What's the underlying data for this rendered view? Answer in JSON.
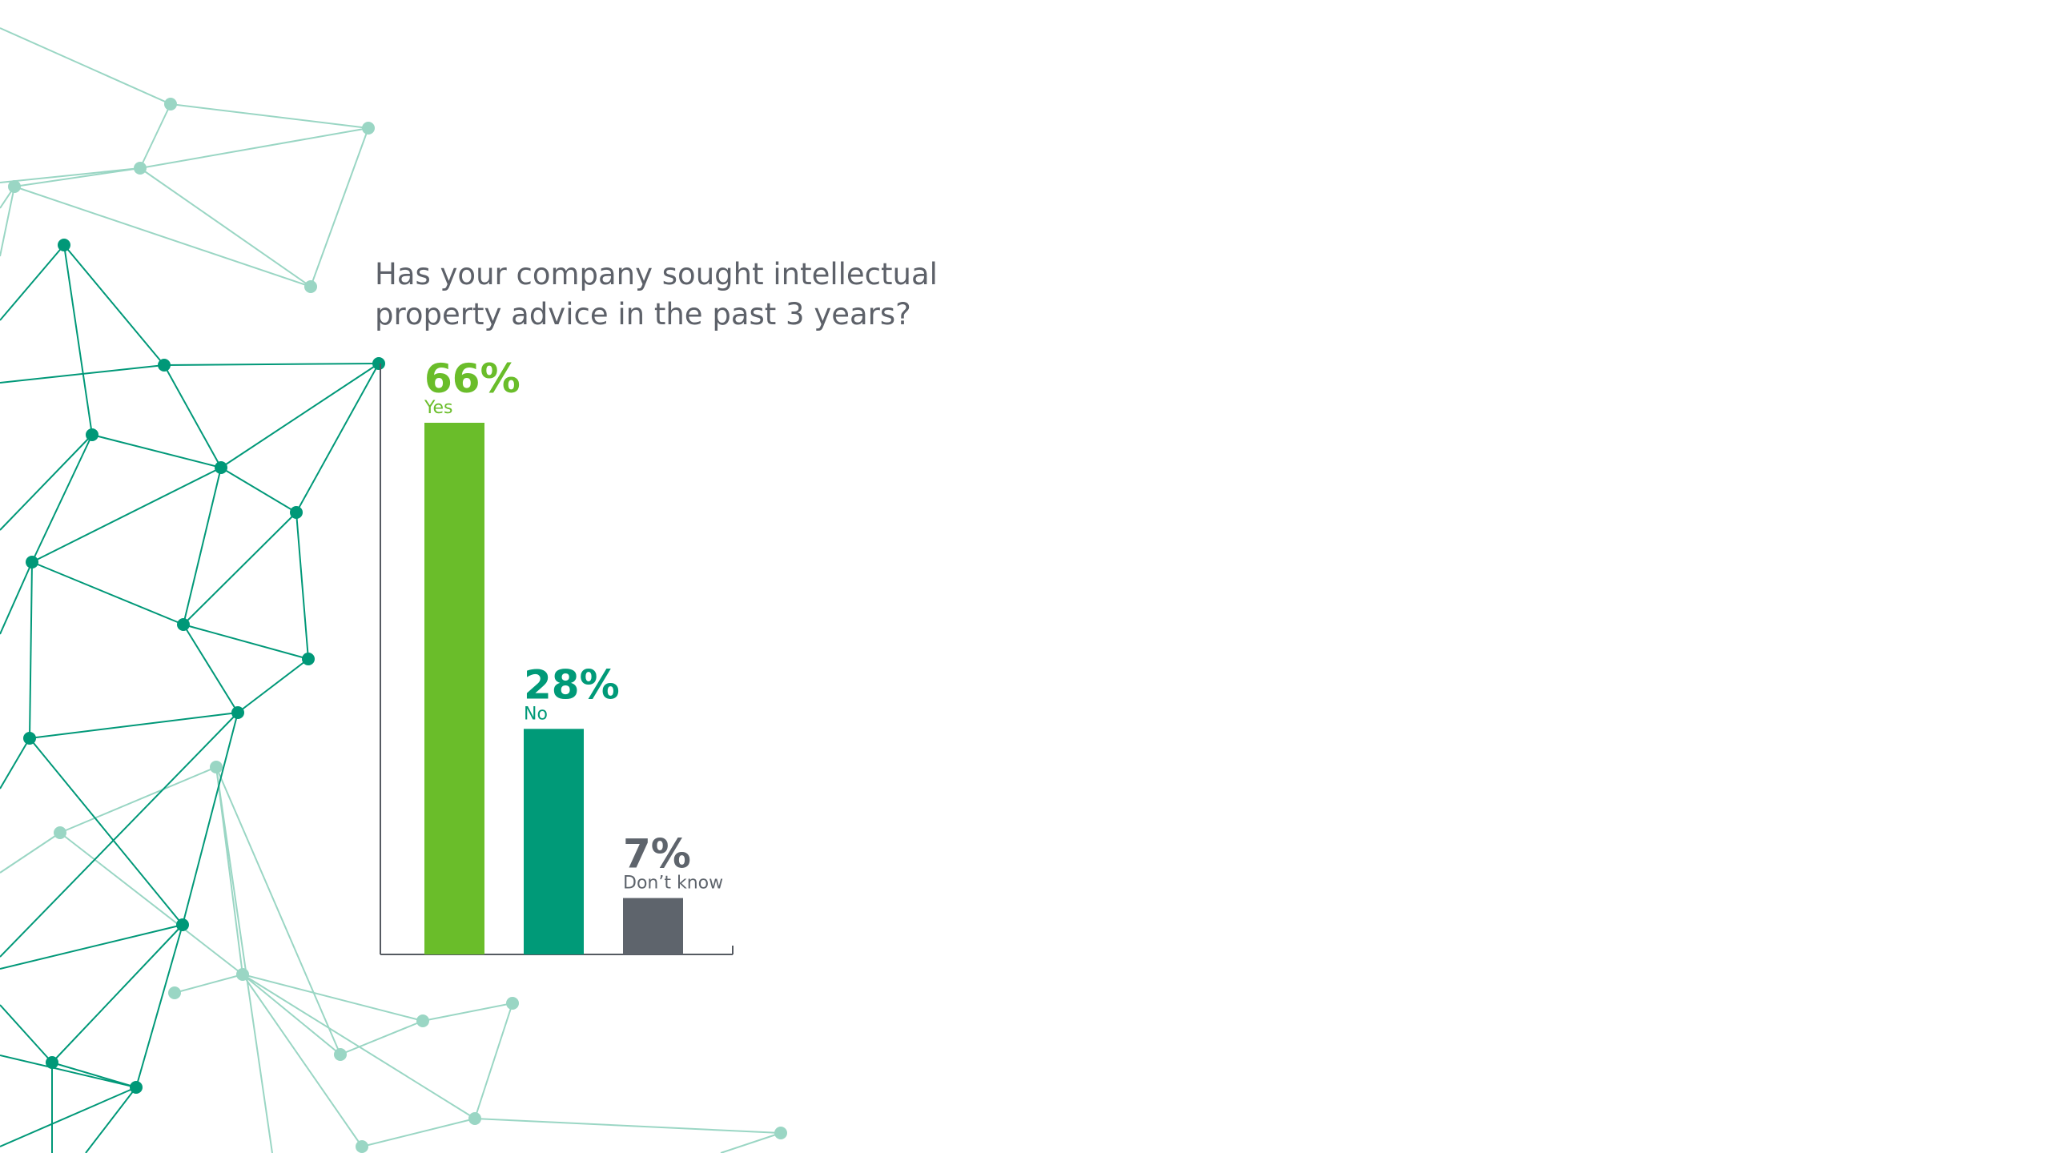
{
  "colors": {
    "network_dark": "#009878",
    "network_light": "#9ad6c4",
    "axis": "#555a61",
    "title": "#5d6169"
  },
  "chart_data": {
    "type": "bar",
    "title": "Has your company sought intellectual property advice in the past 3 years?",
    "xlabel": "",
    "ylabel": "",
    "ylim": [
      0,
      66
    ],
    "grid": false,
    "categories": [
      "Yes",
      "No",
      "Don’t know"
    ],
    "values": [
      66,
      28,
      7
    ],
    "value_labels": [
      "66%",
      "28%",
      "7%"
    ],
    "bar_colors": [
      "#6abd2a",
      "#009a78",
      "#5e646c"
    ]
  }
}
